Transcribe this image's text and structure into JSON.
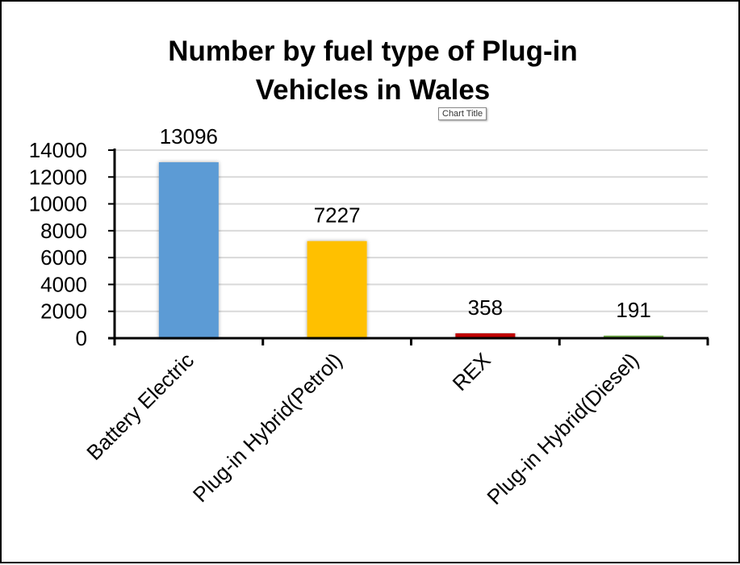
{
  "chart_data": {
    "type": "bar",
    "title_lines": [
      "Number by fuel type of Plug-in",
      "Vehicles in Wales"
    ],
    "tooltip": "Chart Title",
    "categories": [
      "Battery Electric",
      "Plug-in Hybrid(Petrol)",
      "REX",
      "Plug-in Hybrid(Diesel)"
    ],
    "values": [
      13096,
      7227,
      358,
      191
    ],
    "bar_colors": [
      "#5B9BD5",
      "#FFC000",
      "#C00000",
      "#70AD47"
    ],
    "ylim": [
      0,
      14000
    ],
    "yticks": [
      0,
      2000,
      4000,
      6000,
      8000,
      10000,
      12000,
      14000
    ],
    "grid": true,
    "legend": "none"
  }
}
